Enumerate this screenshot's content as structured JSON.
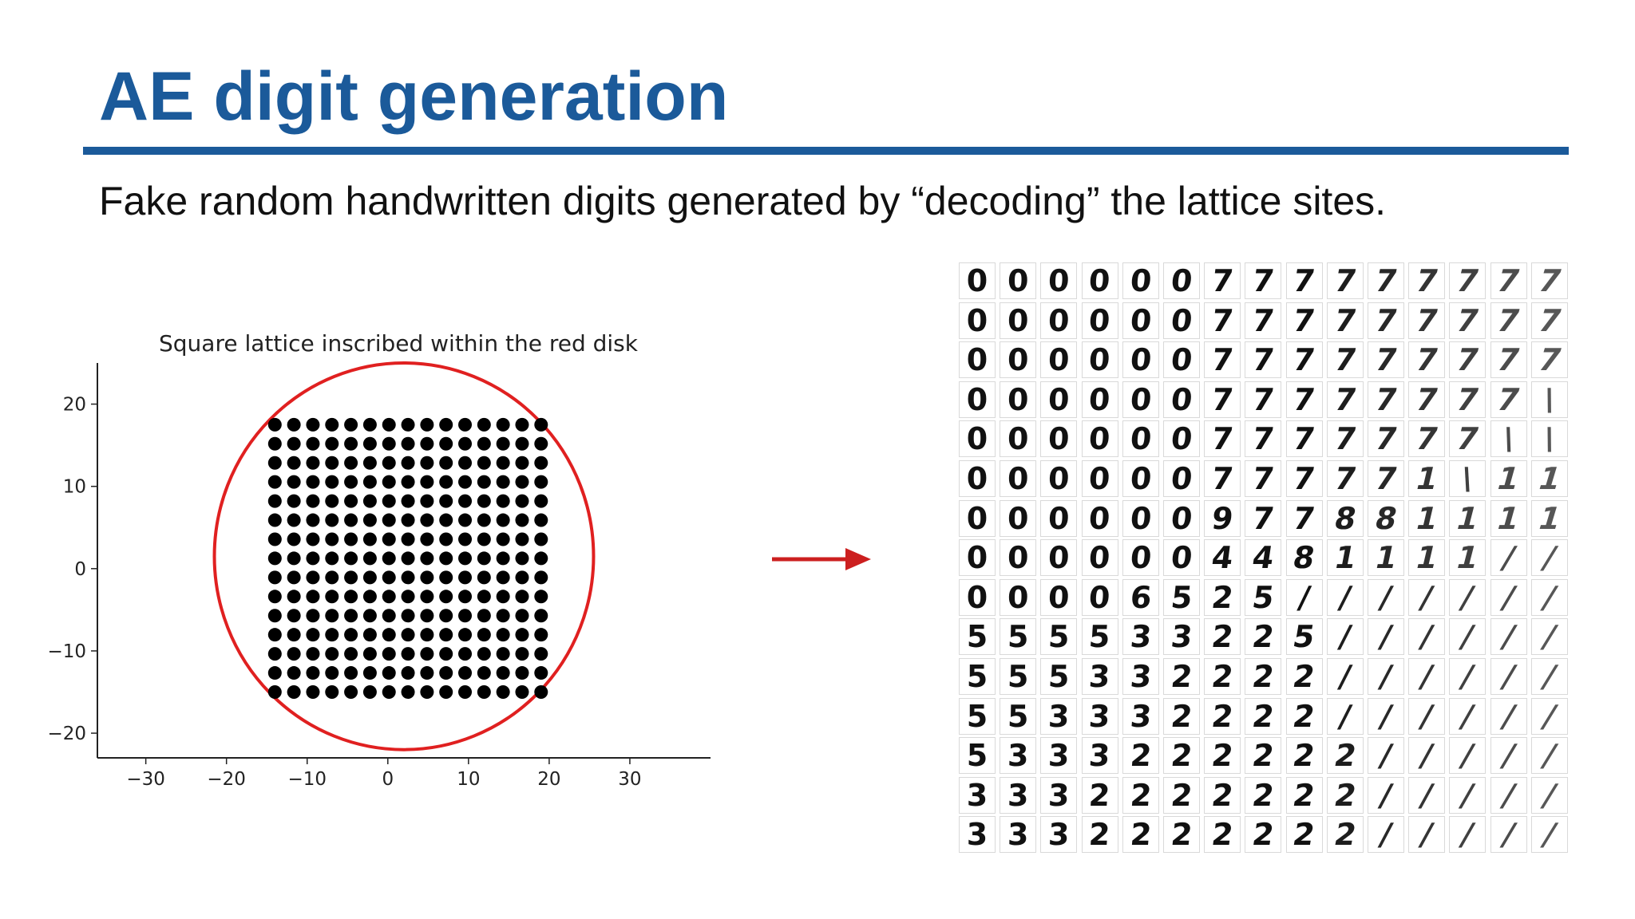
{
  "slide": {
    "title": "AE digit generation",
    "subtitle": "Fake random handwritten digits generated by “decoding” the lattice sites.",
    "accent_color": "#1b5a9a"
  },
  "chart_data": {
    "type": "scatter",
    "title": "Square lattice inscribed within the red disk",
    "xlim": [
      -36,
      40
    ],
    "ylim": [
      -23,
      25
    ],
    "xticks": [
      -30,
      -20,
      -10,
      0,
      10,
      20,
      30
    ],
    "yticks": [
      -20,
      -10,
      0,
      10,
      20
    ],
    "xtick_labels": [
      "−30",
      "−20",
      "−10",
      "0",
      "10",
      "20",
      "30"
    ],
    "ytick_labels": [
      "−20",
      "−10",
      "0",
      "10",
      "20"
    ],
    "grid": false,
    "lattice": {
      "x_min": -14,
      "x_max": 19,
      "y_min": -15,
      "y_max": 17.5,
      "n": 15
    },
    "circle": {
      "center": [
        2,
        1.5
      ],
      "radius": 23.5,
      "color": "#e02020"
    },
    "point_color": "#000000"
  },
  "arrow": {
    "icon": "right-arrow-icon",
    "color": "#cc1f1f"
  },
  "decoded_grid": {
    "rows": [
      [
        "0",
        "0",
        "0",
        "0",
        "0",
        "0",
        "7",
        "7",
        "7",
        "7",
        "7",
        "7",
        "7",
        "7",
        "7"
      ],
      [
        "0",
        "0",
        "0",
        "0",
        "0",
        "0",
        "7",
        "7",
        "7",
        "7",
        "7",
        "7",
        "7",
        "7",
        "7"
      ],
      [
        "0",
        "0",
        "0",
        "0",
        "0",
        "0",
        "7",
        "7",
        "7",
        "7",
        "7",
        "7",
        "7",
        "7",
        "7"
      ],
      [
        "0",
        "0",
        "0",
        "0",
        "0",
        "0",
        "7",
        "7",
        "7",
        "7",
        "7",
        "7",
        "7",
        "7",
        "\\"
      ],
      [
        "0",
        "0",
        "0",
        "0",
        "0",
        "0",
        "7",
        "7",
        "7",
        "7",
        "7",
        "7",
        "7",
        "\\",
        "\\"
      ],
      [
        "0",
        "0",
        "0",
        "0",
        "0",
        "0",
        "7",
        "7",
        "7",
        "7",
        "7",
        "1",
        "\\",
        "1",
        "1"
      ],
      [
        "0",
        "0",
        "0",
        "0",
        "0",
        "0",
        "9",
        "7",
        "7",
        "8",
        "8",
        "1",
        "1",
        "1",
        "1"
      ],
      [
        "0",
        "0",
        "0",
        "0",
        "0",
        "0",
        "4",
        "4",
        "8",
        "1",
        "1",
        "1",
        "1",
        "/",
        "/"
      ],
      [
        "0",
        "0",
        "0",
        "0",
        "6",
        "5",
        "2",
        "5",
        "/",
        "/",
        "/",
        "/",
        "/",
        "/",
        "/"
      ],
      [
        "5",
        "5",
        "5",
        "5",
        "3",
        "3",
        "2",
        "2",
        "5",
        "/",
        "/",
        "/",
        "/",
        "/",
        "/"
      ],
      [
        "5",
        "5",
        "5",
        "3",
        "3",
        "2",
        "2",
        "2",
        "2",
        "/",
        "/",
        "/",
        "/",
        "/",
        "/"
      ],
      [
        "5",
        "5",
        "3",
        "3",
        "3",
        "2",
        "2",
        "2",
        "2",
        "/",
        "/",
        "/",
        "/",
        "/",
        "/"
      ],
      [
        "5",
        "3",
        "3",
        "3",
        "2",
        "2",
        "2",
        "2",
        "2",
        "2",
        "/",
        "/",
        "/",
        "/",
        "/"
      ],
      [
        "3",
        "3",
        "3",
        "2",
        "2",
        "2",
        "2",
        "2",
        "2",
        "2",
        "/",
        "/",
        "/",
        "/",
        "/"
      ],
      [
        "3",
        "3",
        "3",
        "2",
        "2",
        "2",
        "2",
        "2",
        "2",
        "2",
        "/",
        "/",
        "/",
        "/",
        "/"
      ]
    ]
  }
}
